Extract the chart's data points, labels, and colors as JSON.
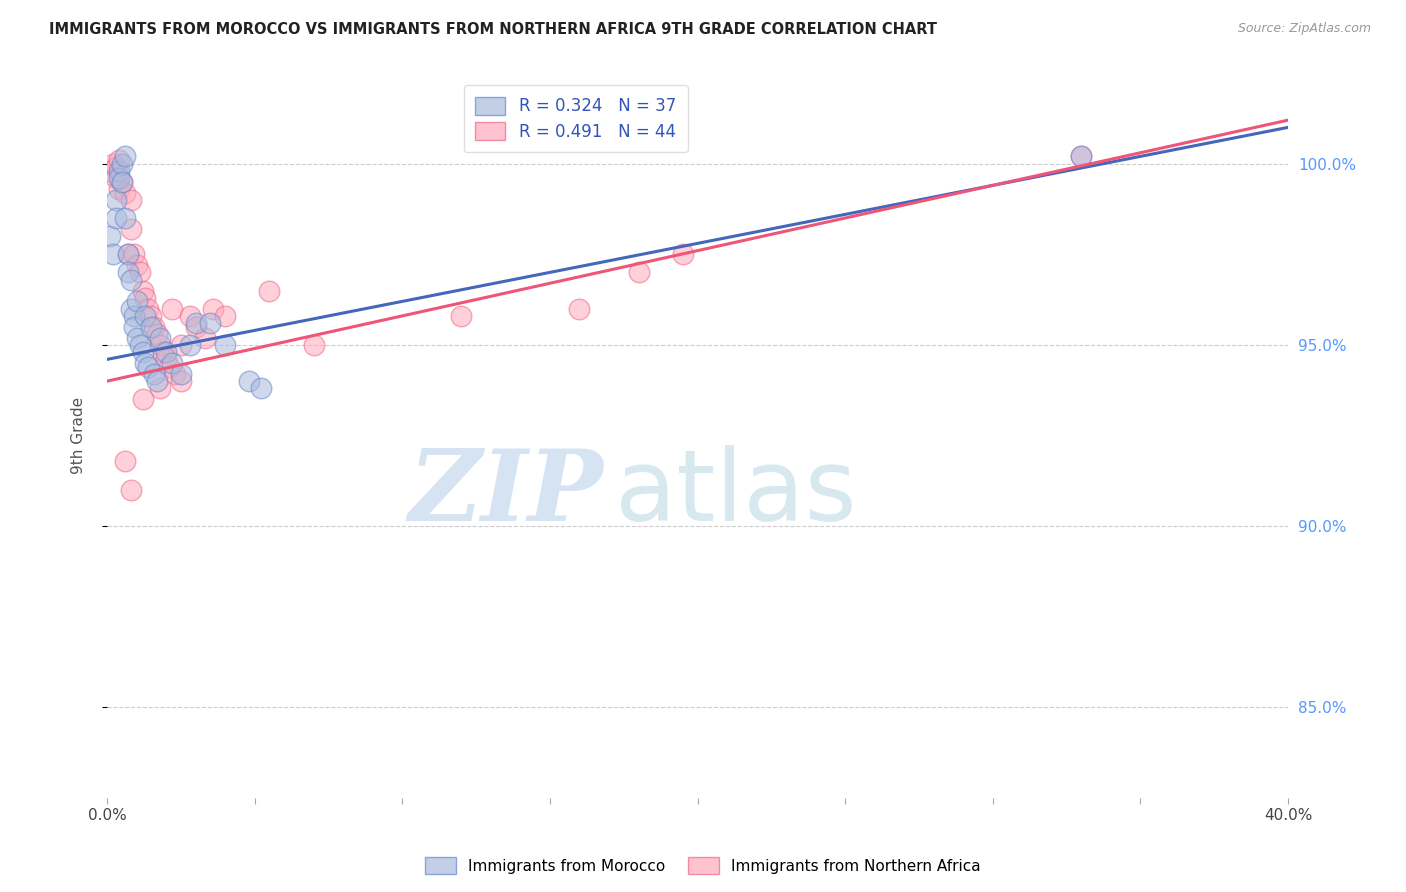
{
  "title": "IMMIGRANTS FROM MOROCCO VS IMMIGRANTS FROM NORTHERN AFRICA 9TH GRADE CORRELATION CHART",
  "source": "Source: ZipAtlas.com",
  "ylabel": "9th Grade",
  "y_ticks": [
    0.85,
    0.9,
    0.95,
    1.0
  ],
  "y_tick_labels": [
    "85.0%",
    "90.0%",
    "95.0%",
    "100.0%"
  ],
  "x_ticks": [
    0.0,
    0.05,
    0.1,
    0.15,
    0.2,
    0.25,
    0.3,
    0.35,
    0.4
  ],
  "xlim": [
    0.0,
    0.4
  ],
  "ylim": [
    0.825,
    1.025
  ],
  "blue_R": 0.324,
  "blue_N": 37,
  "pink_R": 0.491,
  "pink_N": 44,
  "blue_color": "#aabbdd",
  "pink_color": "#ffaabb",
  "blue_edge_color": "#6688cc",
  "pink_edge_color": "#ee6688",
  "blue_line_color": "#4466bb",
  "pink_line_color": "#ee5577",
  "legend_label_blue": "Immigrants from Morocco",
  "legend_label_pink": "Immigrants from Northern Africa",
  "watermark_zip": "ZIP",
  "watermark_atlas": "atlas",
  "blue_scatter_x": [
    0.001,
    0.002,
    0.003,
    0.003,
    0.004,
    0.004,
    0.005,
    0.005,
    0.006,
    0.006,
    0.007,
    0.007,
    0.008,
    0.008,
    0.009,
    0.009,
    0.01,
    0.01,
    0.011,
    0.012,
    0.013,
    0.013,
    0.014,
    0.015,
    0.016,
    0.017,
    0.018,
    0.02,
    0.022,
    0.025,
    0.028,
    0.03,
    0.035,
    0.04,
    0.048,
    0.052,
    0.33
  ],
  "blue_scatter_y": [
    0.98,
    0.975,
    0.99,
    0.985,
    0.998,
    0.996,
    1.0,
    0.995,
    1.002,
    0.985,
    0.975,
    0.97,
    0.96,
    0.968,
    0.958,
    0.955,
    0.962,
    0.952,
    0.95,
    0.948,
    0.958,
    0.945,
    0.944,
    0.955,
    0.942,
    0.94,
    0.952,
    0.948,
    0.945,
    0.942,
    0.95,
    0.956,
    0.956,
    0.95,
    0.94,
    0.938,
    1.002
  ],
  "pink_scatter_x": [
    0.001,
    0.002,
    0.003,
    0.003,
    0.004,
    0.004,
    0.005,
    0.006,
    0.007,
    0.008,
    0.008,
    0.009,
    0.01,
    0.011,
    0.012,
    0.013,
    0.014,
    0.015,
    0.016,
    0.017,
    0.018,
    0.019,
    0.02,
    0.021,
    0.022,
    0.023,
    0.025,
    0.028,
    0.03,
    0.033,
    0.036,
    0.04,
    0.055,
    0.07,
    0.12,
    0.16,
    0.18,
    0.195,
    0.025,
    0.018,
    0.012,
    0.008,
    0.006,
    0.33
  ],
  "pink_scatter_y": [
    0.998,
    1.0,
    0.999,
    0.996,
    1.001,
    0.993,
    0.995,
    0.992,
    0.975,
    0.99,
    0.982,
    0.975,
    0.972,
    0.97,
    0.965,
    0.963,
    0.96,
    0.958,
    0.955,
    0.953,
    0.95,
    0.948,
    0.946,
    0.944,
    0.96,
    0.942,
    0.95,
    0.958,
    0.955,
    0.952,
    0.96,
    0.958,
    0.965,
    0.95,
    0.958,
    0.96,
    0.97,
    0.975,
    0.94,
    0.938,
    0.935,
    0.91,
    0.918,
    1.002
  ],
  "blue_trendline_x": [
    0.0,
    0.4
  ],
  "blue_trendline_y": [
    0.946,
    1.01
  ],
  "pink_trendline_x": [
    0.0,
    0.4
  ],
  "pink_trendline_y": [
    0.94,
    1.012
  ]
}
